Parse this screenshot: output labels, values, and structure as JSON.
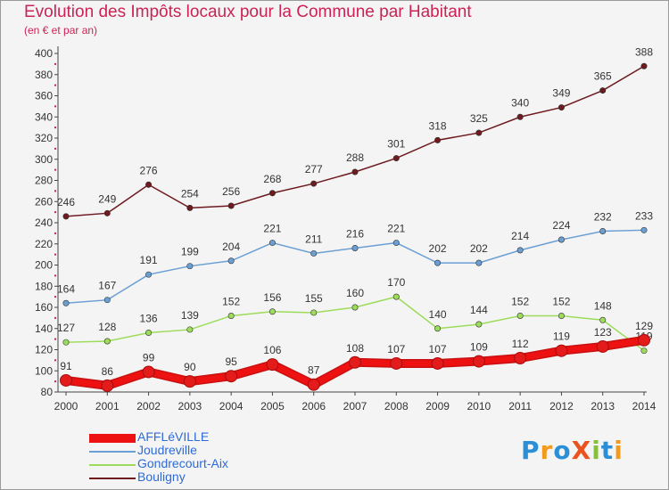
{
  "header": {
    "title": "Evolution des Impôts locaux pour la Commune par Habitant",
    "subtitle": "(en € et par an)"
  },
  "logo": {
    "text": "Proxiti",
    "letters": [
      {
        "ch": "P",
        "color": "#2a8fd6"
      },
      {
        "ch": "r",
        "color": "#f29a1e"
      },
      {
        "ch": "o",
        "color": "#2a8fd6"
      },
      {
        "ch": "X",
        "color": "#e9531f"
      },
      {
        "ch": "i",
        "color": "#86bf3a"
      },
      {
        "ch": "t",
        "color": "#2a8fd6"
      },
      {
        "ch": "i",
        "color": "#f29a1e"
      }
    ]
  },
  "chart_data": {
    "type": "line",
    "title": "Evolution des Impôts locaux pour la Commune par Habitant",
    "subtitle": "(en € et par an)",
    "x": [
      2000,
      2001,
      2002,
      2003,
      2004,
      2005,
      2006,
      2007,
      2008,
      2009,
      2010,
      2011,
      2012,
      2013,
      2014
    ],
    "ylim": [
      80,
      400
    ],
    "yticks": [
      80,
      100,
      120,
      140,
      160,
      180,
      200,
      220,
      240,
      260,
      280,
      300,
      320,
      340,
      360,
      380,
      400
    ],
    "grid": false,
    "legend_position": "bottom-left",
    "series": [
      {
        "name": "Bouligny",
        "color": "#6e1a1f",
        "values": [
          246,
          249,
          276,
          254,
          256,
          268,
          277,
          288,
          301,
          318,
          325,
          340,
          349,
          365,
          388
        ],
        "labels": [
          "246",
          "249",
          "276",
          "254",
          "256",
          "268",
          "277",
          "288",
          "301",
          "318",
          "325",
          "340",
          "349",
          "365",
          "388"
        ]
      },
      {
        "name": "Joudreville",
        "color": "#6b9fd4",
        "values": [
          164,
          167,
          191,
          199,
          204,
          221,
          211,
          216,
          221,
          202,
          202,
          214,
          224,
          232,
          233
        ],
        "labels": [
          "164",
          "167",
          "191",
          "199",
          "204",
          "221",
          "211",
          "216",
          "221",
          "202",
          "202",
          "214",
          "224",
          "232",
          "233"
        ]
      },
      {
        "name": "Gondrecourt-Aix",
        "color": "#9ddc5a",
        "values": [
          127,
          128,
          136,
          139,
          152,
          156,
          155,
          160,
          170,
          140,
          144,
          152,
          152,
          148,
          119
        ],
        "labels": [
          "127",
          "128",
          "136",
          "139",
          "152",
          "156",
          "155",
          "160",
          "170",
          "140",
          "144",
          "152",
          "152",
          "148",
          "119"
        ]
      },
      {
        "name": "AFFLéVILLE",
        "color": "#ee1111",
        "values": [
          91,
          86,
          99,
          90,
          95,
          106,
          87,
          108,
          107,
          107,
          109,
          112,
          119,
          123,
          129
        ],
        "labels": [
          "91",
          "86",
          "99",
          "90",
          "95",
          "106",
          "87",
          "108",
          "107",
          "107",
          "109",
          "112",
          "119",
          "123",
          "129"
        ]
      }
    ],
    "legend": [
      {
        "name": "AFFLéVILLE",
        "color": "#ee1111"
      },
      {
        "name": "Joudreville",
        "color": "#6b9fd4"
      },
      {
        "name": "Gondrecourt-Aix",
        "color": "#9ddc5a"
      },
      {
        "name": "Bouligny",
        "color": "#6e1a1f"
      }
    ]
  }
}
